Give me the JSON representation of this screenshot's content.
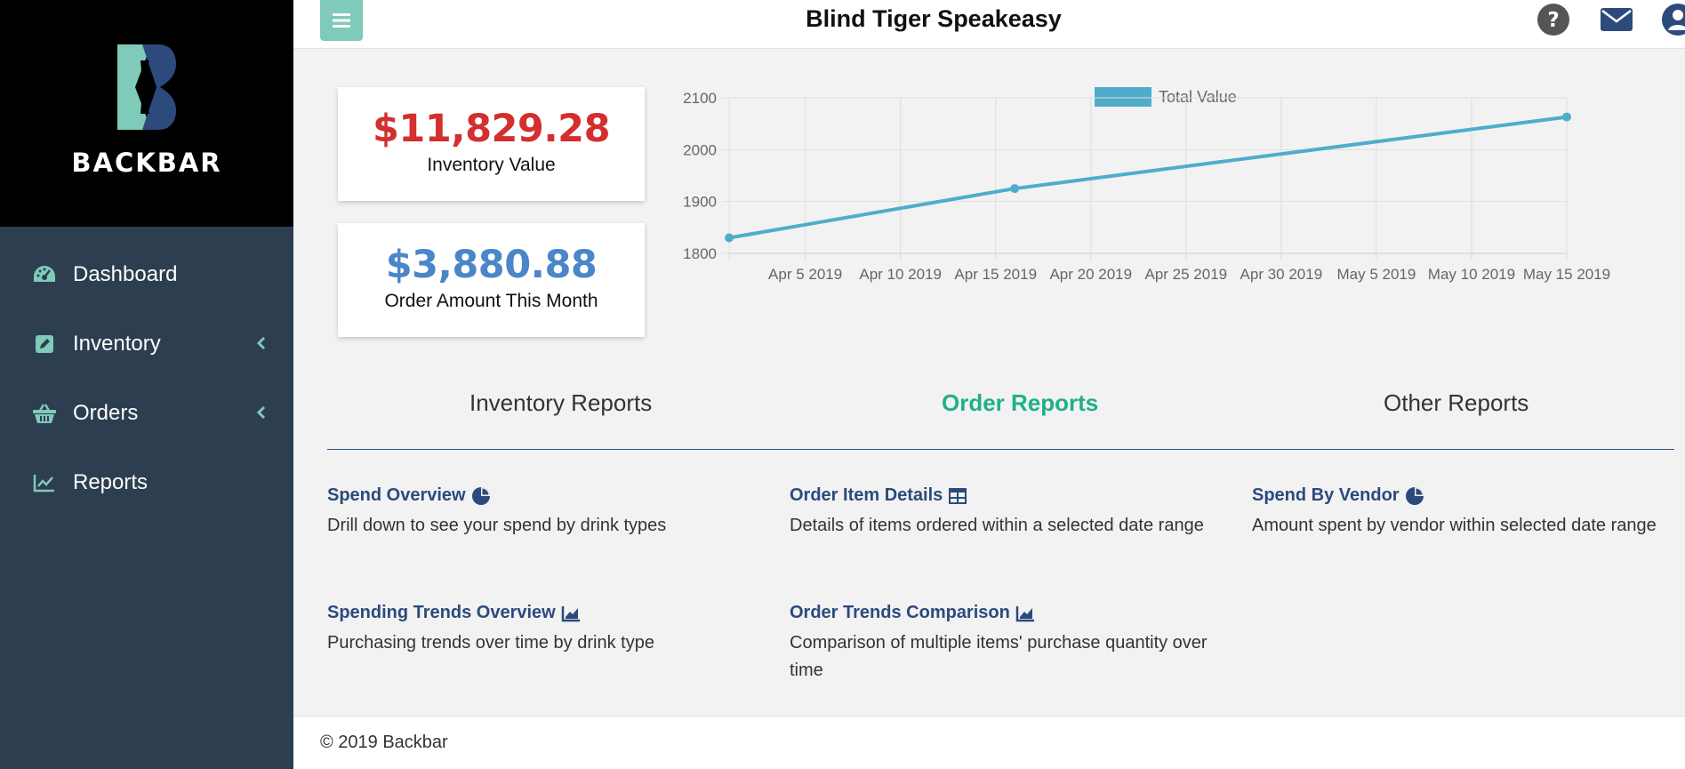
{
  "brand": {
    "name": "BACKBAR"
  },
  "sidebar": {
    "items": [
      {
        "label": "Dashboard",
        "icon": "dashboard-icon"
      },
      {
        "label": "Inventory",
        "icon": "edit-icon",
        "has_chevron": true
      },
      {
        "label": "Orders",
        "icon": "basket-icon",
        "has_chevron": true
      },
      {
        "label": "Reports",
        "icon": "chart-line-icon"
      }
    ]
  },
  "header": {
    "title": "Blind Tiger Speakeasy"
  },
  "stats": {
    "inventory_value": "$11,829.28",
    "inventory_label": "Inventory Value",
    "order_amount": "$3,880.88",
    "order_label": "Order Amount This Month"
  },
  "colors": {
    "sidebar": "#2c3e50",
    "accent": "#1fb08a",
    "inventory_value": "#d32f2f",
    "order_value": "#4a86c8",
    "line": "#4fadcb"
  },
  "chart_data": {
    "type": "line",
    "series": [
      {
        "name": "Total Value",
        "points": [
          [
            "2019-04-01",
            1830
          ],
          [
            "2019-04-16",
            1925
          ],
          [
            "2019-05-15",
            2063
          ]
        ]
      }
    ],
    "x_ticks": [
      "Apr 5 2019",
      "Apr 10 2019",
      "Apr 15 2019",
      "Apr 20 2019",
      "Apr 25 2019",
      "Apr 30 2019",
      "May 5 2019",
      "May 10 2019",
      "May 15 2019"
    ],
    "y_ticks": [
      "1800",
      "1900",
      "2000",
      "2100"
    ],
    "ylim": [
      1800,
      2100
    ],
    "grid": true,
    "legend": "top"
  },
  "tabs": [
    {
      "label": "Inventory Reports",
      "active": false
    },
    {
      "label": "Order Reports",
      "active": true
    },
    {
      "label": "Other Reports",
      "active": false
    }
  ],
  "reports": [
    {
      "title": "Spend Overview",
      "icon": "pie-chart-icon",
      "desc": "Drill down to see your spend by drink types"
    },
    {
      "title": "Order Item Details",
      "icon": "table-icon",
      "desc": "Details of items ordered within a selected date range"
    },
    {
      "title": "Spend By Vendor",
      "icon": "pie-chart-icon",
      "desc": "Amount spent by vendor within selected date range"
    },
    {
      "title": "Spending Trends Overview",
      "icon": "area-chart-icon",
      "desc": "Purchasing trends over time by drink type"
    },
    {
      "title": "Order Trends Comparison",
      "icon": "area-chart-icon",
      "desc": "Comparison of multiple items' purchase quantity over time"
    }
  ],
  "footer": {
    "text": "© 2019 Backbar"
  }
}
